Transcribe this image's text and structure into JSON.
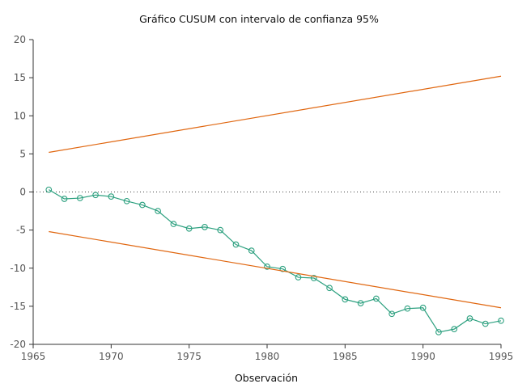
{
  "chart_data": {
    "type": "line",
    "title": "Gráfico CUSUM con intervalo de confianza 95%",
    "xlabel": "Observación",
    "ylabel": "",
    "xlim": [
      1965,
      1995
    ],
    "ylim": [
      -20,
      20
    ],
    "x_ticks": [
      1965,
      1970,
      1975,
      1980,
      1985,
      1990,
      1995
    ],
    "y_ticks": [
      20,
      15,
      10,
      5,
      0,
      -5,
      -10,
      -15,
      -20
    ],
    "grid": false,
    "zero_line": true,
    "series": [
      {
        "color": "#2ca07f",
        "marker": "circle",
        "x": [
          1966,
          1967,
          1968,
          1969,
          1970,
          1971,
          1972,
          1973,
          1974,
          1975,
          1976,
          1977,
          1978,
          1979,
          1980,
          1981,
          1982,
          1983,
          1984,
          1985,
          1986,
          1987,
          1988,
          1989,
          1990,
          1991,
          1992,
          1993,
          1994,
          1995
        ],
        "values": [
          0.3,
          -0.9,
          -0.8,
          -0.4,
          -0.6,
          -1.2,
          -1.7,
          -2.5,
          -4.2,
          -4.8,
          -4.6,
          -5.0,
          -6.9,
          -7.7,
          -9.8,
          -10.1,
          -11.2,
          -11.3,
          -12.6,
          -14.1,
          -14.6,
          -14.0,
          -16.0,
          -15.3,
          -15.2,
          -18.4,
          -18.0,
          -16.6,
          -17.3,
          -16.9
        ]
      },
      {
        "color": "#e0660f",
        "marker": "none",
        "x": [
          1966,
          1995
        ],
        "values": [
          5.2,
          15.2
        ]
      },
      {
        "color": "#e0660f",
        "marker": "none",
        "x": [
          1966,
          1995
        ],
        "values": [
          -5.2,
          -15.2
        ]
      }
    ]
  }
}
